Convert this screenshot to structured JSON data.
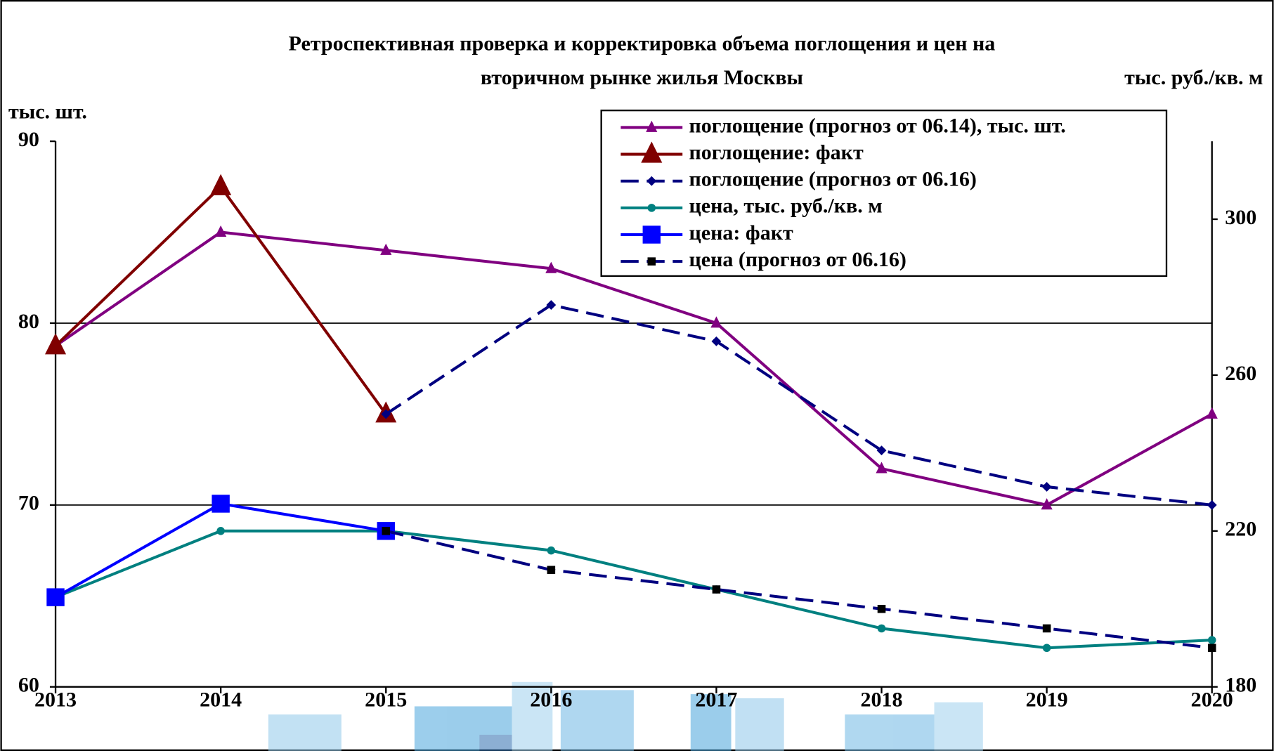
{
  "chart_data": {
    "type": "line",
    "title": [
      "Ретроспективная проверка и корректировка объема поглощения и цен на",
      "вторичном рынке жилья Москвы"
    ],
    "y_label": "тыс. шт.",
    "y2_label": "тыс. руб./кв. м",
    "categories": [
      "2013",
      "2014",
      "2015",
      "2016",
      "2017",
      "2018",
      "2019",
      "2020"
    ],
    "ylim": [
      60,
      90
    ],
    "yticks": [
      60,
      70,
      80,
      90
    ],
    "y2lim": [
      180,
      320
    ],
    "y2ticks": [
      180,
      220,
      260,
      300
    ],
    "grid": true,
    "series": [
      {
        "name": "поглощение (прогноз от 06.14), тыс. шт.",
        "color": "#800080",
        "marker": "triangle",
        "marker_size": 7,
        "dash": false,
        "values": [
          78.75,
          85,
          84,
          83,
          80,
          72,
          70,
          75
        ]
      },
      {
        "name": "поглощение: факт",
        "color": "#800000",
        "marker": "triangle",
        "marker_size": 13,
        "dash": false,
        "values": [
          78.75,
          87.5,
          75,
          null,
          null,
          null,
          null,
          null
        ]
      },
      {
        "name": "поглощение (прогноз от 06.16)",
        "color": "#000080",
        "marker": "diamond",
        "marker_size": 6,
        "dash": true,
        "values": [
          null,
          null,
          75,
          81,
          79,
          73,
          71,
          70
        ]
      },
      {
        "name": "цена, тыс. руб./кв. м",
        "color": "#008080",
        "marker": "circle",
        "marker_size": 5,
        "dash": false,
        "axis": "y2",
        "values": [
          203,
          220,
          220,
          215,
          205,
          195,
          190,
          192
        ]
      },
      {
        "name": "цена: факт",
        "color": "#0000ff",
        "marker": "square",
        "marker_size": 11,
        "dash": false,
        "axis": "y2",
        "values": [
          203,
          227,
          220,
          null,
          null,
          null,
          null,
          null
        ]
      },
      {
        "name": "цена (прогноз от 06.16)",
        "color": "#000080",
        "marker": "square",
        "marker_color": "#000000",
        "marker_size": 5,
        "dash": true,
        "axis": "y2",
        "values": [
          null,
          null,
          220,
          210,
          205,
          200,
          195,
          190
        ]
      }
    ]
  }
}
